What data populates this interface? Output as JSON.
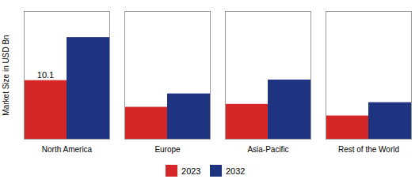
{
  "chart_data": {
    "type": "bar",
    "categories": [
      "North America",
      "Europe",
      "Asia-Pacific",
      "Rest of the World"
    ],
    "series": [
      {
        "name": "2023",
        "color": "#d62728",
        "values": [
          10.1,
          5.5,
          6.0,
          4.0
        ]
      },
      {
        "name": "2032",
        "color": "#1f3480",
        "values": [
          17.5,
          7.8,
          10.2,
          6.3
        ]
      }
    ],
    "ylabel": "Market Size in USD Bn",
    "ylim": [
      0,
      22
    ],
    "yticks": [],
    "tick_labels": "x",
    "grid": false,
    "legend": "bottom",
    "annotations": [
      {
        "text": "10.1",
        "category": "North America",
        "series": "2023"
      }
    ],
    "reference_lines": [
      {
        "y": 0.15,
        "line_style": "dashed"
      }
    ]
  }
}
